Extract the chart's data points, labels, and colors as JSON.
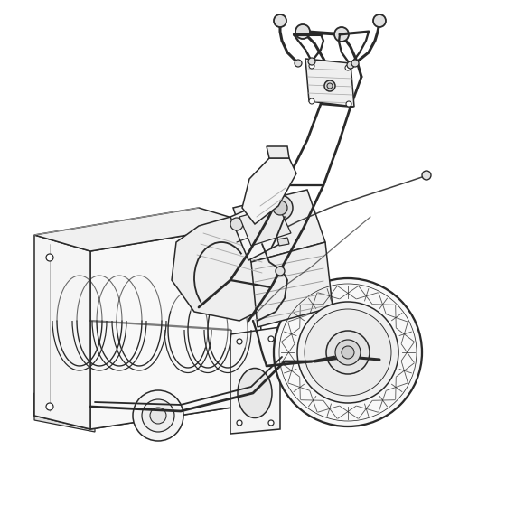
{
  "background_color": "#ffffff",
  "line_color": "#2a2a2a",
  "line_width": 1.1,
  "figsize": [
    5.6,
    5.6
  ],
  "dpi": 100
}
